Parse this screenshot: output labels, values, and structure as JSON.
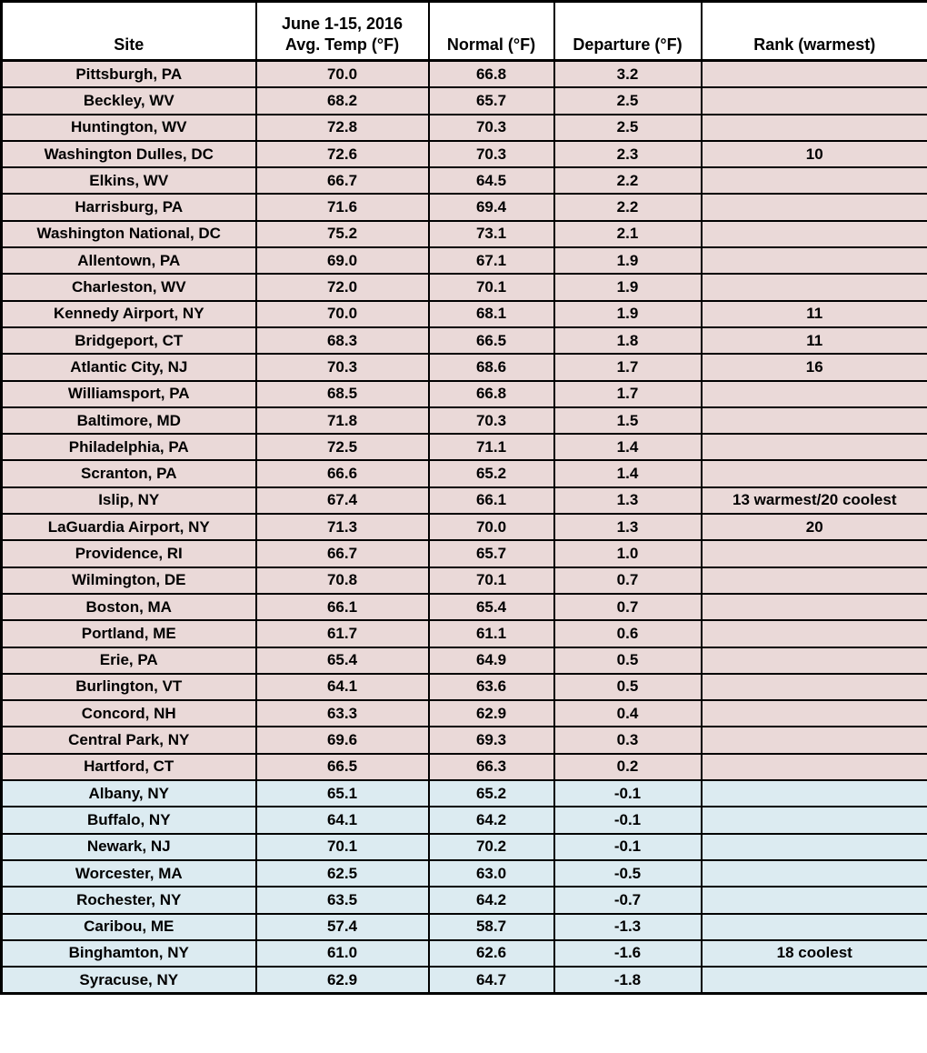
{
  "chart_data": {
    "type": "table",
    "header": {
      "site": "Site",
      "avg_temp_line1": "June 1-15, 2016",
      "avg_temp_line2": "Avg. Temp (°F)",
      "normal": "Normal (°F)",
      "departure": "Departure (°F)",
      "rank": "Rank (warmest)"
    },
    "colors": {
      "warm_row_bg": "#ead9d8",
      "cool_row_bg": "#dcebf1",
      "header_bg": "#ffffff",
      "border": "#000000",
      "text": "#000000"
    },
    "rows": [
      {
        "site": "Pittsburgh, PA",
        "avg_temp": "70.0",
        "normal": "66.8",
        "departure": "3.2",
        "rank": "",
        "shading": "warm"
      },
      {
        "site": "Beckley, WV",
        "avg_temp": "68.2",
        "normal": "65.7",
        "departure": "2.5",
        "rank": "",
        "shading": "warm"
      },
      {
        "site": "Huntington, WV",
        "avg_temp": "72.8",
        "normal": "70.3",
        "departure": "2.5",
        "rank": "",
        "shading": "warm"
      },
      {
        "site": "Washington Dulles, DC",
        "avg_temp": "72.6",
        "normal": "70.3",
        "departure": "2.3",
        "rank": "10",
        "shading": "warm"
      },
      {
        "site": "Elkins, WV",
        "avg_temp": "66.7",
        "normal": "64.5",
        "departure": "2.2",
        "rank": "",
        "shading": "warm"
      },
      {
        "site": "Harrisburg, PA",
        "avg_temp": "71.6",
        "normal": "69.4",
        "departure": "2.2",
        "rank": "",
        "shading": "warm"
      },
      {
        "site": "Washington National, DC",
        "avg_temp": "75.2",
        "normal": "73.1",
        "departure": "2.1",
        "rank": "",
        "shading": "warm"
      },
      {
        "site": "Allentown, PA",
        "avg_temp": "69.0",
        "normal": "67.1",
        "departure": "1.9",
        "rank": "",
        "shading": "warm"
      },
      {
        "site": "Charleston, WV",
        "avg_temp": "72.0",
        "normal": "70.1",
        "departure": "1.9",
        "rank": "",
        "shading": "warm"
      },
      {
        "site": "Kennedy Airport, NY",
        "avg_temp": "70.0",
        "normal": "68.1",
        "departure": "1.9",
        "rank": "11",
        "shading": "warm"
      },
      {
        "site": "Bridgeport, CT",
        "avg_temp": "68.3",
        "normal": "66.5",
        "departure": "1.8",
        "rank": "11",
        "shading": "warm"
      },
      {
        "site": "Atlantic City, NJ",
        "avg_temp": "70.3",
        "normal": "68.6",
        "departure": "1.7",
        "rank": "16",
        "shading": "warm"
      },
      {
        "site": "Williamsport, PA",
        "avg_temp": "68.5",
        "normal": "66.8",
        "departure": "1.7",
        "rank": "",
        "shading": "warm"
      },
      {
        "site": "Baltimore, MD",
        "avg_temp": "71.8",
        "normal": "70.3",
        "departure": "1.5",
        "rank": "",
        "shading": "warm"
      },
      {
        "site": "Philadelphia, PA",
        "avg_temp": "72.5",
        "normal": "71.1",
        "departure": "1.4",
        "rank": "",
        "shading": "warm"
      },
      {
        "site": "Scranton, PA",
        "avg_temp": "66.6",
        "normal": "65.2",
        "departure": "1.4",
        "rank": "",
        "shading": "warm"
      },
      {
        "site": "Islip, NY",
        "avg_temp": "67.4",
        "normal": "66.1",
        "departure": "1.3",
        "rank": "13 warmest/20 coolest",
        "shading": "warm"
      },
      {
        "site": "LaGuardia Airport, NY",
        "avg_temp": "71.3",
        "normal": "70.0",
        "departure": "1.3",
        "rank": "20",
        "shading": "warm"
      },
      {
        "site": "Providence, RI",
        "avg_temp": "66.7",
        "normal": "65.7",
        "departure": "1.0",
        "rank": "",
        "shading": "warm"
      },
      {
        "site": "Wilmington, DE",
        "avg_temp": "70.8",
        "normal": "70.1",
        "departure": "0.7",
        "rank": "",
        "shading": "warm"
      },
      {
        "site": "Boston, MA",
        "avg_temp": "66.1",
        "normal": "65.4",
        "departure": "0.7",
        "rank": "",
        "shading": "warm"
      },
      {
        "site": "Portland, ME",
        "avg_temp": "61.7",
        "normal": "61.1",
        "departure": "0.6",
        "rank": "",
        "shading": "warm"
      },
      {
        "site": "Erie, PA",
        "avg_temp": "65.4",
        "normal": "64.9",
        "departure": "0.5",
        "rank": "",
        "shading": "warm"
      },
      {
        "site": "Burlington, VT",
        "avg_temp": "64.1",
        "normal": "63.6",
        "departure": "0.5",
        "rank": "",
        "shading": "warm"
      },
      {
        "site": "Concord, NH",
        "avg_temp": "63.3",
        "normal": "62.9",
        "departure": "0.4",
        "rank": "",
        "shading": "warm"
      },
      {
        "site": "Central Park, NY",
        "avg_temp": "69.6",
        "normal": "69.3",
        "departure": "0.3",
        "rank": "",
        "shading": "warm"
      },
      {
        "site": "Hartford, CT",
        "avg_temp": "66.5",
        "normal": "66.3",
        "departure": "0.2",
        "rank": "",
        "shading": "warm"
      },
      {
        "site": "Albany, NY",
        "avg_temp": "65.1",
        "normal": "65.2",
        "departure": "-0.1",
        "rank": "",
        "shading": "cool"
      },
      {
        "site": "Buffalo, NY",
        "avg_temp": "64.1",
        "normal": "64.2",
        "departure": "-0.1",
        "rank": "",
        "shading": "cool"
      },
      {
        "site": "Newark, NJ",
        "avg_temp": "70.1",
        "normal": "70.2",
        "departure": "-0.1",
        "rank": "",
        "shading": "cool"
      },
      {
        "site": "Worcester, MA",
        "avg_temp": "62.5",
        "normal": "63.0",
        "departure": "-0.5",
        "rank": "",
        "shading": "cool"
      },
      {
        "site": "Rochester, NY",
        "avg_temp": "63.5",
        "normal": "64.2",
        "departure": "-0.7",
        "rank": "",
        "shading": "cool"
      },
      {
        "site": "Caribou, ME",
        "avg_temp": "57.4",
        "normal": "58.7",
        "departure": "-1.3",
        "rank": "",
        "shading": "cool"
      },
      {
        "site": "Binghamton, NY",
        "avg_temp": "61.0",
        "normal": "62.6",
        "departure": "-1.6",
        "rank": "18 coolest",
        "shading": "cool"
      },
      {
        "site": "Syracuse, NY",
        "avg_temp": "62.9",
        "normal": "64.7",
        "departure": "-1.8",
        "rank": "",
        "shading": "cool"
      }
    ]
  }
}
